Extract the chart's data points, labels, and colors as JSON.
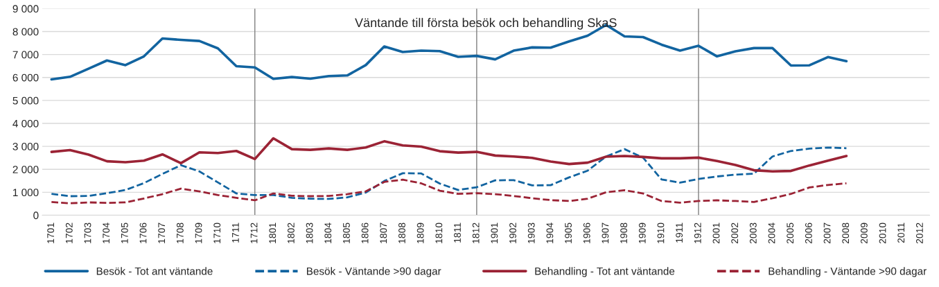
{
  "chart_data": {
    "type": "line",
    "title": "Väntande till första besök och behandling SkaS",
    "categories": [
      "1701",
      "1702",
      "1703",
      "1704",
      "1705",
      "1706",
      "1707",
      "1708",
      "1709",
      "1710",
      "1711",
      "1712",
      "1801",
      "1802",
      "1803",
      "1804",
      "1805",
      "1806",
      "1807",
      "1808",
      "1809",
      "1810",
      "1811",
      "1812",
      "1901",
      "1902",
      "1903",
      "1904",
      "1905",
      "1906",
      "1907",
      "1908",
      "1909",
      "1910",
      "1911",
      "1912",
      "2001",
      "2002",
      "2003",
      "2004",
      "2005",
      "2006",
      "2007",
      "2008",
      "2009",
      "2010",
      "2011",
      "2012"
    ],
    "series": [
      {
        "name": "Besök - Tot ant väntande",
        "color": "#1264a0",
        "line_style": "solid",
        "values": [
          5920,
          6030,
          6380,
          6740,
          6540,
          6920,
          7700,
          7640,
          7590,
          7270,
          6490,
          6440,
          5940,
          6020,
          5950,
          6060,
          6090,
          6540,
          7350,
          7110,
          7170,
          7150,
          6900,
          6940,
          6790,
          7170,
          7310,
          7300,
          7570,
          7820,
          8290,
          7790,
          7760,
          7430,
          7170,
          7380,
          6920,
          7140,
          7280,
          7280,
          6520,
          6530,
          6890,
          6710,
          null,
          null,
          null,
          null
        ]
      },
      {
        "name": "Besök - Väntande >90 dagar",
        "color": "#1264a0",
        "line_style": "dashed",
        "values": [
          930,
          830,
          840,
          960,
          1100,
          1400,
          1800,
          2180,
          1910,
          1430,
          950,
          880,
          880,
          760,
          720,
          710,
          780,
          990,
          1490,
          1830,
          1820,
          1380,
          1100,
          1220,
          1520,
          1530,
          1300,
          1310,
          1650,
          1940,
          2560,
          2880,
          2510,
          1560,
          1420,
          1580,
          1690,
          1770,
          1810,
          2560,
          2800,
          2900,
          2950,
          2920,
          null,
          null,
          null,
          null
        ]
      },
      {
        "name": "Behandling - Tot ant väntande",
        "color": "#9b2335",
        "line_style": "solid",
        "values": [
          2760,
          2840,
          2640,
          2350,
          2310,
          2380,
          2650,
          2270,
          2740,
          2710,
          2800,
          2450,
          3350,
          2880,
          2850,
          2910,
          2850,
          2950,
          3220,
          3040,
          2990,
          2790,
          2730,
          2760,
          2600,
          2560,
          2500,
          2340,
          2230,
          2290,
          2550,
          2580,
          2540,
          2480,
          2480,
          2510,
          2360,
          2190,
          1960,
          1910,
          1930,
          2170,
          2380,
          2580,
          null,
          null,
          null,
          null
        ]
      },
      {
        "name": "Behandling - Väntande >90 dagar",
        "color": "#9b2335",
        "line_style": "dashed",
        "values": [
          580,
          520,
          560,
          540,
          560,
          730,
          920,
          1160,
          1040,
          880,
          760,
          650,
          950,
          850,
          830,
          840,
          920,
          1040,
          1450,
          1550,
          1390,
          1070,
          930,
          960,
          920,
          840,
          740,
          660,
          620,
          720,
          1000,
          1090,
          950,
          620,
          550,
          620,
          650,
          620,
          580,
          740,
          930,
          1210,
          1320,
          1390,
          null,
          null,
          null,
          null
        ]
      }
    ],
    "ylim": [
      0,
      9000
    ],
    "yticks": [
      0,
      {
        "value": 1000,
        "label": "1 000"
      },
      {
        "value": 2000,
        "label": "2 000"
      },
      {
        "value": 3000,
        "label": "3 000"
      },
      {
        "value": 4000,
        "label": "4 000"
      },
      {
        "value": 5000,
        "label": "5 000"
      },
      {
        "value": 6000,
        "label": "6 000"
      },
      {
        "value": 7000,
        "label": "7 000"
      },
      {
        "value": 8000,
        "label": "8 000"
      },
      {
        "value": 9000,
        "label": "9 000"
      }
    ],
    "ref_lines": [
      {
        "axis": "x",
        "value": "1712",
        "color": "#7f7f7f"
      },
      {
        "axis": "x",
        "value": "1812",
        "color": "#7f7f7f"
      },
      {
        "axis": "x",
        "value": "1912",
        "color": "#7f7f7f"
      }
    ],
    "grid": "y",
    "legend": "bottom",
    "marker": "none"
  }
}
